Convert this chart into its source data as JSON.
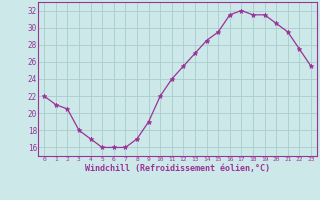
{
  "x": [
    0,
    1,
    2,
    3,
    4,
    5,
    6,
    7,
    8,
    9,
    10,
    11,
    12,
    13,
    14,
    15,
    16,
    17,
    18,
    19,
    20,
    21,
    22,
    23
  ],
  "y": [
    22,
    21,
    20.5,
    18,
    17,
    16,
    16,
    16,
    17,
    19,
    22,
    24,
    25.5,
    27,
    28.5,
    29.5,
    31.5,
    32,
    31.5,
    31.5,
    30.5,
    29.5,
    27.5,
    25.5
  ],
  "xlabel": "Windchill (Refroidissement éolien,°C)",
  "background_color": "#cce8e8",
  "grid_color": "#aacccc",
  "line_color": "#993399",
  "marker_color": "#993399",
  "yticks": [
    16,
    18,
    20,
    22,
    24,
    26,
    28,
    30,
    32
  ],
  "xtick_labels": [
    "0",
    "1",
    "2",
    "3",
    "4",
    "5",
    "6",
    "7",
    "8",
    "9",
    "10",
    "11",
    "12",
    "13",
    "14",
    "15",
    "16",
    "17",
    "18",
    "19",
    "20",
    "21",
    "22",
    "23"
  ],
  "ylim": [
    15.0,
    33.0
  ],
  "xlim": [
    -0.5,
    23.5
  ]
}
